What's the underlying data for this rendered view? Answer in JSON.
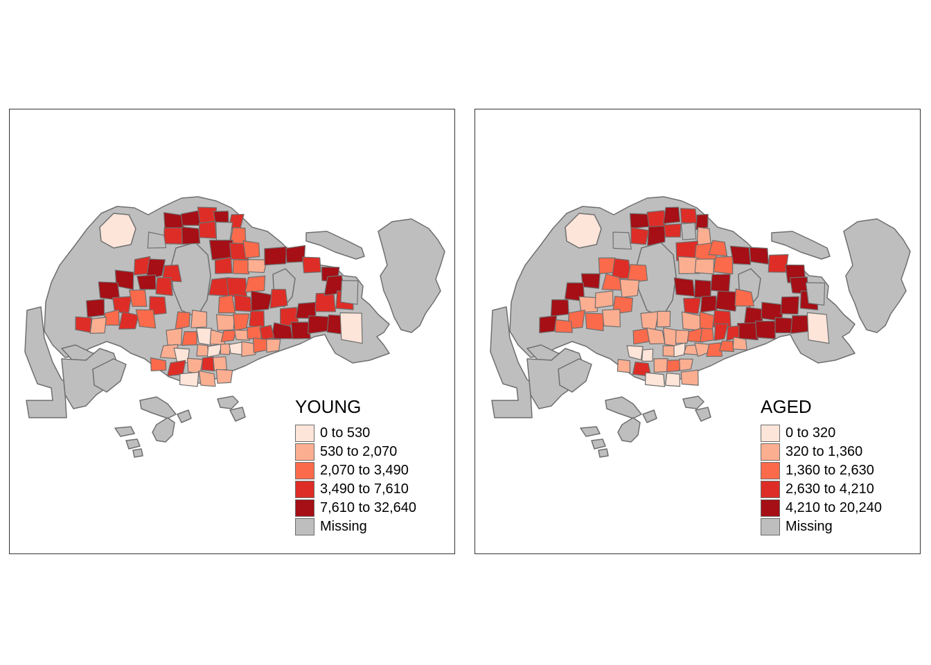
{
  "maps": [
    {
      "id": "young",
      "title": "YOUNG",
      "classes": [
        {
          "label": "0 to 530",
          "color": "#fee5d9"
        },
        {
          "label": "530 to 2,070",
          "color": "#fcae91"
        },
        {
          "label": "2,070 to 3,490",
          "color": "#fb6a4a"
        },
        {
          "label": "3,490 to 7,610",
          "color": "#de2d26"
        },
        {
          "label": "7,610 to 32,640",
          "color": "#a50f15"
        },
        {
          "label": "Missing",
          "color": "#bebebe"
        }
      ]
    },
    {
      "id": "aged",
      "title": "AGED",
      "classes": [
        {
          "label": "0 to 320",
          "color": "#fee5d9"
        },
        {
          "label": "320 to 1,360",
          "color": "#fcae91"
        },
        {
          "label": "1,360 to 2,630",
          "color": "#fb6a4a"
        },
        {
          "label": "2,630 to 4,210",
          "color": "#de2d26"
        },
        {
          "label": "4,210 to 20,240",
          "color": "#a50f15"
        },
        {
          "label": "Missing",
          "color": "#bebebe"
        }
      ]
    }
  ],
  "colors": {
    "missing": "#bebebe",
    "boundary": "#6e6e6e",
    "frame": "#333333"
  }
}
